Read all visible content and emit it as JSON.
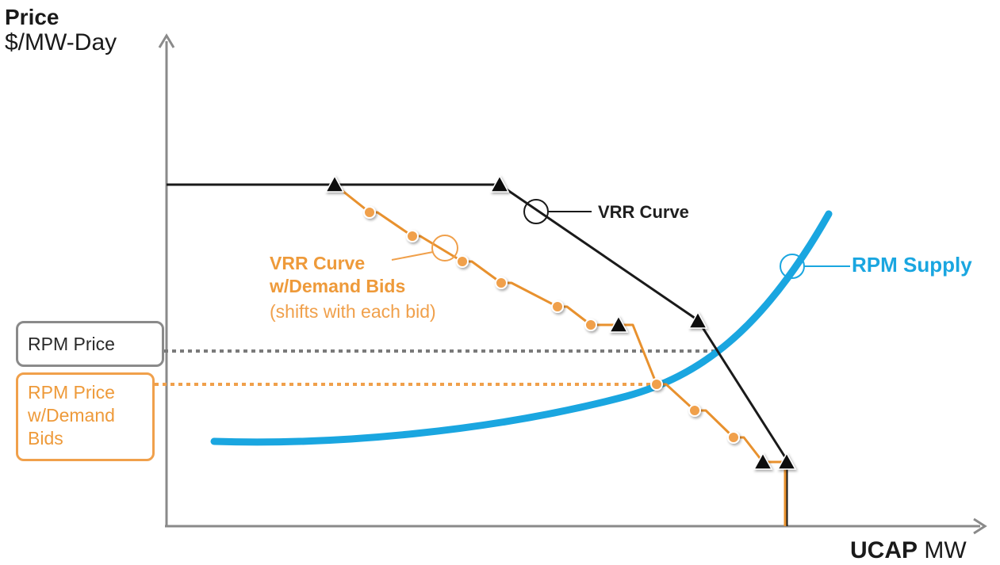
{
  "axes": {
    "y_title": "Price",
    "y_unit": "$/MW-Day",
    "x_title": "UCAP",
    "x_unit": "MW"
  },
  "labels": {
    "vrr_curve": "VRR Curve",
    "rpm_supply": "RPM Supply",
    "vrr_demand_bids": "VRR Curve\nw/Demand Bids",
    "vrr_demand_bids_note": "(shifts with each bid)",
    "rpm_price": "RPM Price",
    "rpm_price_demand_bids": "RPM Price\nw/Demand\nBids"
  },
  "colors": {
    "vrr_curve": "#1a1a1a",
    "demand_bids_curve": "#f0a04b",
    "rpm_supply": "#1aa6e0",
    "axis": "#8a8a8a",
    "rpm_price_line": "#7a7a7a"
  },
  "icons": {
    "vrr_vertex": "black-triangle-marker",
    "bid_point": "orange-dot-marker",
    "callout": "circle-callout"
  }
}
